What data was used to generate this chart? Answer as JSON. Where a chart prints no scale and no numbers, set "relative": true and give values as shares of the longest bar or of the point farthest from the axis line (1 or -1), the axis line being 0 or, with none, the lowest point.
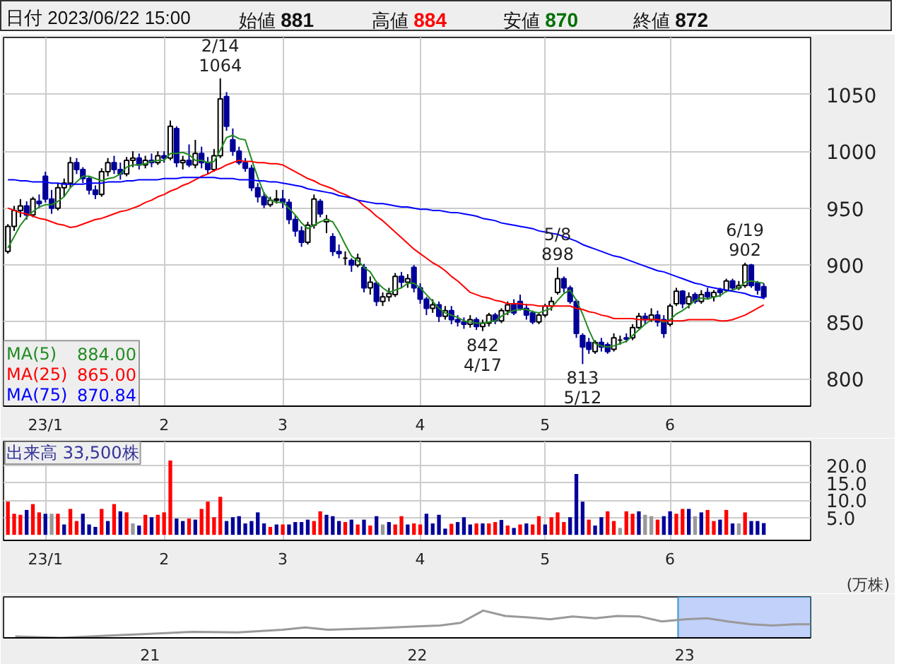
{
  "chart_data": [
    {
      "type": "candlestick",
      "title": "日付 2023/06/22 15:00 始値 881 高値 884 安値 870 終値 872",
      "categories": [
        null,
        null,
        null,
        null,
        null,
        null,
        "23/1",
        null,
        null,
        null,
        null,
        null,
        null,
        null,
        null,
        null,
        null,
        null,
        null,
        null,
        null,
        null,
        null,
        null,
        null,
        "2",
        null,
        null,
        null,
        null,
        null,
        null,
        null,
        null,
        null,
        null,
        null,
        null,
        null,
        null,
        null,
        null,
        null,
        null,
        "3",
        null,
        null,
        null,
        null,
        null,
        null,
        null,
        null,
        null,
        null,
        null,
        null,
        null,
        null,
        null,
        null,
        null,
        null,
        null,
        null,
        null,
        "4",
        null,
        null,
        null,
        null,
        null,
        null,
        null,
        null,
        null,
        null,
        null,
        null,
        null,
        null,
        null,
        null,
        null,
        null,
        null,
        "5",
        null,
        null,
        null,
        null,
        null,
        null,
        null,
        null,
        null,
        null,
        null,
        null,
        null,
        null,
        null,
        null,
        null,
        null,
        null,
        "6",
        null,
        null,
        null,
        null,
        null,
        null,
        null,
        null,
        null,
        null,
        null,
        null,
        null,
        null,
        null
      ],
      "ohlc": [
        [
          912,
          936,
          910,
          934
        ],
        [
          934,
          952,
          930,
          948
        ],
        [
          948,
          958,
          942,
          952
        ],
        [
          952,
          956,
          940,
          944
        ],
        [
          944,
          960,
          942,
          958
        ],
        [
          956,
          962,
          950,
          954
        ],
        [
          978,
          982,
          955,
          958
        ],
        [
          958,
          966,
          945,
          950
        ],
        [
          950,
          972,
          948,
          968
        ],
        [
          968,
          976,
          960,
          972
        ],
        [
          972,
          995,
          968,
          990
        ],
        [
          990,
          994,
          980,
          984
        ],
        [
          984,
          986,
          972,
          976
        ],
        [
          976,
          978,
          962,
          966
        ],
        [
          966,
          970,
          958,
          962
        ],
        [
          962,
          985,
          960,
          982
        ],
        [
          982,
          994,
          978,
          990
        ],
        [
          990,
          996,
          980,
          984
        ],
        [
          984,
          990,
          975,
          980
        ],
        [
          980,
          995,
          978,
          992
        ],
        [
          992,
          1000,
          986,
          994
        ],
        [
          994,
          998,
          984,
          988
        ],
        [
          988,
          996,
          985,
          992
        ],
        [
          992,
          998,
          986,
          990
        ],
        [
          990,
          1000,
          988,
          996
        ],
        [
          996,
          1000,
          990,
          994
        ],
        [
          994,
          1027,
          992,
          1022
        ],
        [
          1020,
          1022,
          986,
          990
        ],
        [
          990,
          996,
          984,
          992
        ],
        [
          992,
          1006,
          986,
          988
        ],
        [
          988,
          1010,
          985,
          998
        ],
        [
          998,
          1004,
          985,
          990
        ],
        [
          990,
          995,
          980,
          984
        ],
        [
          984,
          1002,
          982,
          996
        ],
        [
          996,
          1064,
          994,
          1046
        ],
        [
          1048,
          1052,
          1018,
          1022
        ],
        [
          1010,
          1020,
          996,
          1000
        ],
        [
          1000,
          1004,
          988,
          990
        ],
        [
          990,
          994,
          982,
          985
        ],
        [
          985,
          988,
          965,
          968
        ],
        [
          968,
          972,
          955,
          960
        ],
        [
          960,
          964,
          950,
          953
        ],
        [
          953,
          960,
          951,
          957
        ],
        [
          957,
          966,
          954,
          958
        ],
        [
          958,
          966,
          950,
          955
        ],
        [
          955,
          958,
          936,
          940
        ],
        [
          940,
          944,
          925,
          930
        ],
        [
          930,
          934,
          916,
          920
        ],
        [
          920,
          938,
          918,
          935
        ],
        [
          935,
          962,
          932,
          958
        ],
        [
          956,
          958,
          942,
          945
        ],
        [
          938,
          944,
          928,
          940
        ],
        [
          925,
          928,
          908,
          912
        ],
        [
          912,
          918,
          906,
          910
        ],
        [
          906,
          912,
          900,
          906
        ],
        [
          904,
          906,
          894,
          900
        ],
        [
          900,
          910,
          898,
          906
        ],
        [
          898,
          901,
          876,
          880
        ],
        [
          880,
          890,
          874,
          885
        ],
        [
          884,
          886,
          864,
          868
        ],
        [
          868,
          876,
          864,
          872
        ],
        [
          872,
          880,
          868,
          875
        ],
        [
          874,
          893,
          872,
          890
        ],
        [
          890,
          894,
          880,
          885
        ],
        [
          885,
          892,
          880,
          888
        ],
        [
          898,
          900,
          876,
          880
        ],
        [
          880,
          884,
          866,
          870
        ],
        [
          870,
          872,
          856,
          862
        ],
        [
          862,
          870,
          858,
          865
        ],
        [
          865,
          868,
          850,
          855
        ],
        [
          855,
          864,
          852,
          860
        ],
        [
          860,
          864,
          848,
          852
        ],
        [
          852,
          856,
          846,
          850
        ],
        [
          850,
          854,
          844,
          848
        ],
        [
          848,
          856,
          845,
          852
        ],
        [
          852,
          854,
          843,
          846
        ],
        [
          846,
          852,
          842,
          849
        ],
        [
          849,
          858,
          846,
          856
        ],
        [
          856,
          858,
          848,
          851
        ],
        [
          851,
          862,
          849,
          860
        ],
        [
          860,
          868,
          856,
          865
        ],
        [
          866,
          870,
          856,
          858
        ],
        [
          868,
          874,
          860,
          862
        ],
        [
          862,
          866,
          852,
          856
        ],
        [
          858,
          860,
          848,
          850
        ],
        [
          850,
          858,
          848,
          856
        ],
        [
          856,
          866,
          854,
          864
        ],
        [
          864,
          872,
          860,
          868
        ],
        [
          876,
          898,
          874,
          888
        ],
        [
          888,
          890,
          876,
          880
        ],
        [
          880,
          882,
          866,
          868
        ],
        [
          868,
          870,
          836,
          840
        ],
        [
          838,
          840,
          813,
          828
        ],
        [
          832,
          836,
          822,
          826
        ],
        [
          824,
          834,
          822,
          832
        ],
        [
          832,
          836,
          824,
          828
        ],
        [
          830,
          832,
          822,
          824
        ],
        [
          826,
          840,
          824,
          836
        ],
        [
          834,
          838,
          830,
          834
        ],
        [
          836,
          840,
          832,
          835
        ],
        [
          836,
          848,
          834,
          845
        ],
        [
          845,
          858,
          844,
          855
        ],
        [
          855,
          858,
          848,
          852
        ],
        [
          852,
          862,
          850,
          856
        ],
        [
          856,
          860,
          846,
          850
        ],
        [
          852,
          856,
          836,
          840
        ],
        [
          848,
          866,
          846,
          864
        ],
        [
          866,
          880,
          864,
          877
        ],
        [
          877,
          878,
          862,
          866
        ],
        [
          866,
          876,
          862,
          872
        ],
        [
          874,
          876,
          866,
          868
        ],
        [
          868,
          878,
          866,
          874
        ],
        [
          876,
          880,
          870,
          872
        ],
        [
          872,
          878,
          868,
          876
        ],
        [
          878,
          880,
          872,
          876
        ],
        [
          878,
          888,
          876,
          886
        ],
        [
          886,
          888,
          878,
          880
        ],
        [
          880,
          886,
          878,
          882
        ],
        [
          882,
          902,
          880,
          900
        ],
        [
          900,
          901,
          880,
          882
        ],
        [
          884,
          886,
          874,
          878
        ],
        [
          881,
          884,
          870,
          872
        ]
      ],
      "series": [
        {
          "name": "MA(5)",
          "type": "line",
          "color": "#228b22",
          "values": [
            915,
            925,
            935,
            942,
            947,
            951,
            953,
            953,
            956,
            960,
            968,
            973,
            978,
            978,
            976,
            974,
            976,
            977,
            980,
            986,
            988,
            988,
            989,
            991,
            992,
            992,
            998,
            998,
            999,
            997,
            992,
            992,
            990,
            991,
            1001,
            1012,
            1014,
            1011,
            1010,
            993,
            977,
            963,
            957,
            955,
            955,
            950,
            944,
            937,
            932,
            935,
            938,
            940,
            938,
            929,
            918,
            908,
            904,
            898,
            894,
            885,
            880,
            876,
            878,
            880,
            884,
            884,
            880,
            874,
            868,
            862,
            858,
            856,
            854,
            851,
            850,
            849,
            849,
            850,
            851,
            855,
            858,
            860,
            861,
            861,
            859,
            858,
            860,
            862,
            869,
            875,
            878,
            869,
            857,
            843,
            831,
            829,
            828,
            829,
            831,
            833,
            838,
            843,
            848,
            852,
            852,
            850,
            852,
            857,
            860,
            864,
            869,
            871,
            870,
            872,
            873,
            877,
            878,
            880,
            885,
            886,
            885,
            884
          ]
        },
        {
          "name": "MA(25)",
          "type": "line",
          "color": "#ff0000",
          "values": [
            950,
            948,
            946,
            945,
            943,
            941,
            940,
            938,
            936,
            935,
            933,
            934,
            936,
            938,
            940,
            941,
            943,
            945,
            947,
            948,
            950,
            952,
            955,
            957,
            960,
            962,
            965,
            967,
            970,
            972,
            975,
            978,
            980,
            983,
            985,
            988,
            990,
            992,
            991,
            991,
            990,
            990,
            989,
            989,
            988,
            985,
            982,
            979,
            976,
            974,
            971,
            969,
            967,
            964,
            962,
            959,
            957,
            952,
            948,
            943,
            939,
            934,
            929,
            924,
            919,
            914,
            910,
            906,
            902,
            899,
            895,
            890,
            886,
            881,
            876,
            874,
            872,
            871,
            869,
            868,
            866,
            866,
            866,
            865,
            865,
            864,
            864,
            864,
            864,
            864,
            864,
            862,
            861,
            859,
            858,
            856,
            855,
            853,
            853,
            853,
            853,
            852,
            852,
            852,
            852,
            851,
            851,
            851,
            851,
            852,
            852,
            852,
            852,
            852,
            851,
            851,
            852,
            854,
            856,
            859,
            862,
            865
          ]
        },
        {
          "name": "MA(75)",
          "type": "line",
          "color": "#0000ff",
          "values": [
            975,
            975,
            974,
            974,
            973,
            973,
            973,
            972,
            972,
            971,
            971,
            971,
            971,
            972,
            972,
            972,
            973,
            973,
            973,
            974,
            974,
            975,
            975,
            975,
            975,
            976,
            976,
            976,
            977,
            977,
            977,
            977,
            977,
            977,
            976,
            976,
            976,
            975,
            975,
            975,
            974,
            974,
            973,
            973,
            972,
            971,
            970,
            969,
            967,
            966,
            965,
            964,
            963,
            961,
            960,
            959,
            957,
            956,
            955,
            954,
            954,
            953,
            952,
            951,
            951,
            950,
            949,
            949,
            948,
            948,
            947,
            946,
            946,
            945,
            944,
            943,
            941,
            940,
            939,
            937,
            936,
            935,
            934,
            933,
            932,
            930,
            929,
            928,
            927,
            925,
            923,
            921,
            918,
            916,
            914,
            912,
            910,
            908,
            907,
            905,
            903,
            901,
            899,
            897,
            895,
            894,
            892,
            890,
            888,
            886,
            884,
            883,
            881,
            880,
            879,
            878,
            877,
            876,
            875,
            873,
            872,
            871
          ]
        }
      ],
      "ylim": [
        776,
        1100
      ],
      "yticks": [
        800,
        850,
        900,
        950,
        1000,
        1050
      ],
      "grid": true,
      "legend": "bottom left",
      "annotations": [
        {
          "text": "2/14\n1064",
          "y": 1064
        },
        {
          "text": "842\n4/17",
          "y": 842
        },
        {
          "text": "5/8\n898",
          "y": 898
        },
        {
          "text": "813\n5/12",
          "y": 813
        },
        {
          "text": "6/19\n902",
          "y": 902
        },
        "884.00",
        "865.00",
        "870.84"
      ]
    },
    {
      "type": "bar",
      "title": "出来高 33,500株",
      "ylabel": "(万株)",
      "categories": [
        null,
        null,
        null,
        null,
        null,
        null,
        "23/1",
        null,
        null,
        null,
        null,
        null,
        null,
        null,
        null,
        null,
        null,
        null,
        null,
        null,
        null,
        null,
        null,
        null,
        null,
        "2",
        null,
        null,
        null,
        null,
        null,
        null,
        null,
        null,
        null,
        null,
        null,
        null,
        null,
        null,
        null,
        null,
        null,
        null,
        "3",
        null,
        null,
        null,
        null,
        null,
        null,
        null,
        null,
        null,
        null,
        null,
        null,
        null,
        null,
        null,
        null,
        null,
        null,
        null,
        null,
        null,
        "4",
        null,
        null,
        null,
        null,
        null,
        null,
        null,
        null,
        null,
        null,
        null,
        null,
        null,
        null,
        null,
        null,
        null,
        null,
        null,
        "5",
        null,
        null,
        null,
        null,
        null,
        null,
        null,
        null,
        null,
        null,
        null,
        null,
        null,
        null,
        null,
        null,
        null,
        null,
        null,
        "6",
        null,
        null,
        null,
        null,
        null,
        null,
        null,
        null,
        null,
        null,
        null,
        null,
        null,
        null,
        null
      ],
      "values": [
        9.6,
        6.1,
        5.8,
        7.2,
        8.9,
        6.5,
        6.1,
        6.1,
        6.1,
        3.0,
        7.5,
        4.0,
        6.1,
        3.0,
        2.3,
        7.5,
        4.0,
        8.9,
        6.8,
        6.5,
        3.3,
        2.7,
        5.8,
        5.1,
        5.8,
        6.5,
        21.5,
        4.7,
        4.0,
        4.7,
        4.4,
        7.5,
        9.6,
        5.1,
        11.0,
        4.0,
        5.1,
        5.4,
        3.3,
        4.0,
        6.5,
        3.3,
        2.3,
        3.0,
        3.0,
        3.0,
        3.7,
        3.7,
        4.4,
        4.0,
        6.8,
        5.8,
        5.4,
        4.0,
        3.7,
        4.4,
        3.0,
        4.4,
        2.7,
        5.4,
        3.0,
        3.7,
        3.0,
        5.4,
        3.0,
        3.3,
        3.0,
        6.1,
        3.3,
        5.8,
        1.8,
        3.2,
        3.7,
        5.1,
        3.0,
        3.3,
        3.3,
        3.3,
        3.7,
        4.3,
        2.7,
        2.0,
        3.0,
        3.3,
        3.0,
        5.4,
        3.0,
        5.1,
        6.5,
        3.7,
        5.1,
        17.6,
        9.6,
        4.4,
        2.7,
        5.1,
        6.8,
        4.0,
        2.0,
        6.8,
        6.1,
        6.8,
        5.8,
        5.4,
        4.4,
        5.4,
        6.8,
        6.1,
        7.5,
        7.5,
        5.4,
        6.5,
        7.2,
        4.0,
        4.4,
        7.2,
        3.3,
        3.3,
        6.5,
        4.0,
        4.0,
        3.4
      ],
      "colors": [
        "#ff0000",
        "#ff0000",
        "#ff0000",
        "#000099",
        "#ff0000",
        "#ff0000",
        "#000099",
        "#999999",
        "#ff0000",
        "#000099",
        "#ff0000",
        "#ff0000",
        "#000099",
        "#000099",
        "#000099",
        "#ff0000",
        "#000099",
        "#ff0000",
        "#000099",
        "#ff0000",
        "#999999",
        "#000099",
        "#ff0000",
        "#000099",
        "#ff0000",
        "#ff0000",
        "#ff0000",
        "#000099",
        "#000099",
        "#ff0000",
        "#000099",
        "#ff0000",
        "#ff0000",
        "#ff0000",
        "#ff0000",
        "#000099",
        "#000099",
        "#000099",
        "#000099",
        "#000099",
        "#000099",
        "#000099",
        "#ff0000",
        "#000099",
        "#ff0000",
        "#000099",
        "#000099",
        "#000099",
        "#000099",
        "#ff0000",
        "#ff0000",
        "#000099",
        "#000099",
        "#000099",
        "#ff0000",
        "#000099",
        "#ff0000",
        "#000099",
        "#ff0000",
        "#000099",
        "#999999",
        "#000099",
        "#ff0000",
        "#ff0000",
        "#000099",
        "#ff0000",
        "#ff0000",
        "#000099",
        "#000099",
        "#000099",
        "#000099",
        "#ff0000",
        "#000099",
        "#000099",
        "#000099",
        "#ff0000",
        "#000099",
        "#ff0000",
        "#ff0000",
        "#000099",
        "#ff0000",
        "#000099",
        "#ff0000",
        "#000099",
        "#ff0000",
        "#ff0000",
        "#000099",
        "#ff0000",
        "#ff0000",
        "#ff0000",
        "#000099",
        "#000099",
        "#000099",
        "#ff0000",
        "#000099",
        "#000099",
        "#ff0000",
        "#ff0000",
        "#999999",
        "#ff0000",
        "#ff0000",
        "#000099",
        "#999999",
        "#999999",
        "#ff0000",
        "#000099",
        "#000099",
        "#ff0000",
        "#ff0000",
        "#000099",
        "#999999",
        "#000099",
        "#ff0000",
        "#ff0000",
        "#000099",
        "#ff0000",
        "#000099",
        "#999999",
        "#ff0000",
        "#000099",
        "#000099",
        "#000099"
      ],
      "ylim": [
        -1.6,
        27
      ],
      "yticks": [
        {
          "value": 5,
          "label": "5.0"
        },
        {
          "value": 10,
          "label": "10.0"
        },
        {
          "value": 15,
          "label": "15.0"
        },
        {
          "value": 20,
          "label": "20.0"
        }
      ],
      "grid": true
    },
    {
      "type": "line",
      "relative": true,
      "color": "#999999",
      "x": [
        "2020-07-01",
        "2020-09-01",
        "2020-11-01",
        "2021-01-01",
        "2021-03-01",
        "2021-05-01",
        "2021-07-01",
        "2021-08-01",
        "2021-09-01",
        "2021-11-01",
        "2022-01-01",
        "2022-02-01",
        "2022-03-01",
        "2022-04-01",
        "2022-05-01",
        "2022-06-01",
        "2022-07-01",
        "2022-08-01",
        "2022-09-01",
        "2022-10-01",
        "2022-11-01",
        "2022-12-01",
        "2023-01-01",
        "2023-02-01",
        "2023-03-01",
        "2023-04-01",
        "2023-05-01",
        "2023-06-01",
        "2023-06-22"
      ],
      "values": [
        0.05,
        0.0,
        0.08,
        0.15,
        0.22,
        0.2,
        0.3,
        0.38,
        0.3,
        0.35,
        0.42,
        0.45,
        0.55,
        1.0,
        0.8,
        0.75,
        0.68,
        0.78,
        0.72,
        0.8,
        0.78,
        0.6,
        0.68,
        0.72,
        0.6,
        0.5,
        0.45,
        0.5,
        0.5
      ],
      "xlim": [
        "2020-06-15",
        "2023-06-22"
      ],
      "xticks": [
        {
          "value": "2021-01-01",
          "label": "21"
        },
        {
          "value": "2022-01-01",
          "label": "22"
        },
        {
          "value": "2023-01-01",
          "label": "23"
        }
      ],
      "bands": [
        {
          "axis": "x",
          "from": "2022-12-23",
          "to": "2023-06-22",
          "color": "#b3c6f7"
        }
      ],
      "tick_labels": "x"
    }
  ]
}
